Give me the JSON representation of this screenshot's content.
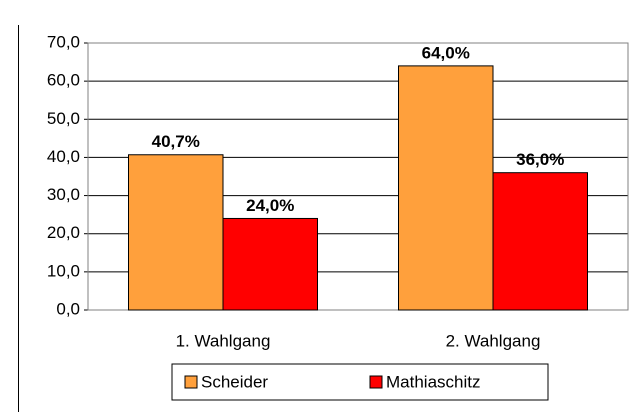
{
  "chart_data": {
    "type": "bar",
    "categories": [
      "1. Wahlgang",
      "2. Wahlgang"
    ],
    "series": [
      {
        "name": "Scheider",
        "color": "#ffa03c",
        "values": [
          40.7,
          64.0
        ],
        "value_labels": [
          "40,7%",
          "64,0%"
        ]
      },
      {
        "name": "Mathiaschitz",
        "color": "#ff0000",
        "values": [
          24.0,
          36.0
        ],
        "value_labels": [
          "24,0%",
          "36,0%"
        ]
      }
    ],
    "ylim": [
      0,
      70
    ],
    "yticks": [
      {
        "value": 0,
        "label": "0,0"
      },
      {
        "value": 10,
        "label": "10,0"
      },
      {
        "value": 20,
        "label": "20,0"
      },
      {
        "value": 30,
        "label": "30,0"
      },
      {
        "value": 40,
        "label": "40,0"
      },
      {
        "value": 50,
        "label": "50,0"
      },
      {
        "value": 60,
        "label": "60,0"
      },
      {
        "value": 70,
        "label": "70,0"
      }
    ],
    "grid": true,
    "legend": "bottom"
  }
}
